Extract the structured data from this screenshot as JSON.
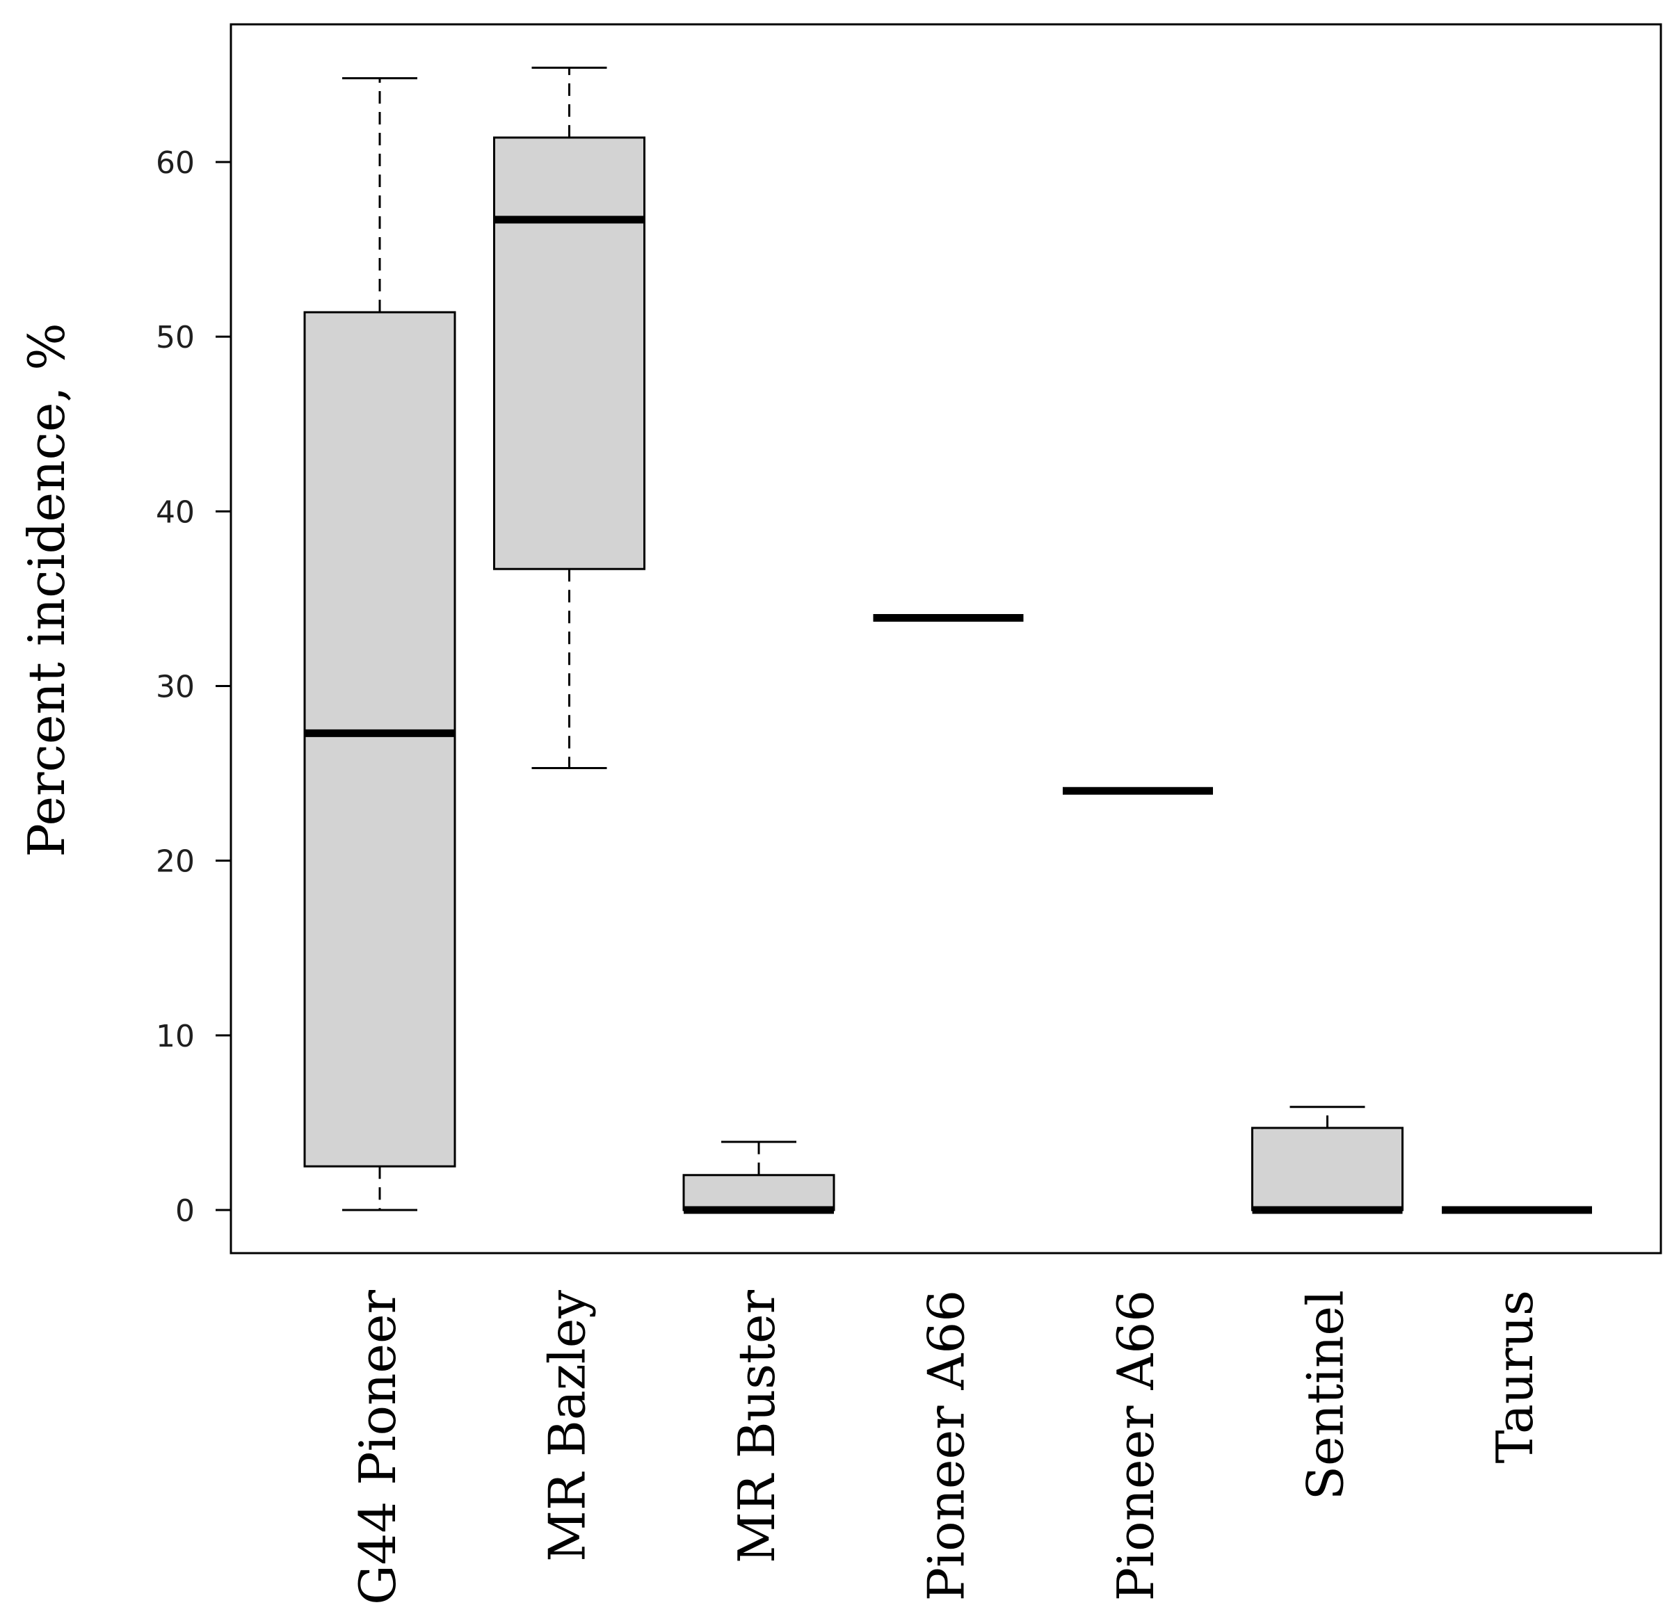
{
  "chart_data": {
    "type": "box",
    "title": "",
    "xlabel": "",
    "ylabel": "Percent incidence, %",
    "ylim": [
      -2.5,
      68
    ],
    "yticks": [
      0,
      10,
      20,
      30,
      40,
      50,
      60
    ],
    "ytick_labels": [
      "0",
      "10",
      "20",
      "30",
      "40",
      "50",
      "60"
    ],
    "colors": {
      "box_fill": "#d3d3d3",
      "stroke": "#000000"
    },
    "categories": [
      "G44 Pioneer",
      "MR Bazley",
      "MR Buster",
      "Pioneer A66",
      "Pioneer A66",
      "Sentinel",
      "Taurus"
    ],
    "boxes": [
      {
        "category": "G44 Pioneer",
        "min": 0,
        "q1": 2.5,
        "median": 27.3,
        "q3": 51.4,
        "max": 64.8
      },
      {
        "category": "MR Bazley",
        "min": 25.3,
        "q1": 36.7,
        "median": 56.7,
        "q3": 61.4,
        "max": 65.4
      },
      {
        "category": "MR Buster",
        "min": 0,
        "q1": 0,
        "median": 0,
        "q3": 2.0,
        "max": 3.9
      },
      {
        "category": "Pioneer A66",
        "min": 33.9,
        "q1": 33.9,
        "median": 33.9,
        "q3": 33.9,
        "max": 33.9
      },
      {
        "category": "Pioneer A66",
        "min": 24.0,
        "q1": 24.0,
        "median": 24.0,
        "q3": 24.0,
        "max": 24.0
      },
      {
        "category": "Sentinel",
        "min": 0,
        "q1": 0,
        "median": 0,
        "q3": 4.7,
        "max": 5.9
      },
      {
        "category": "Taurus",
        "min": 0,
        "q1": 0,
        "median": 0,
        "q3": 0,
        "max": 0
      }
    ]
  }
}
